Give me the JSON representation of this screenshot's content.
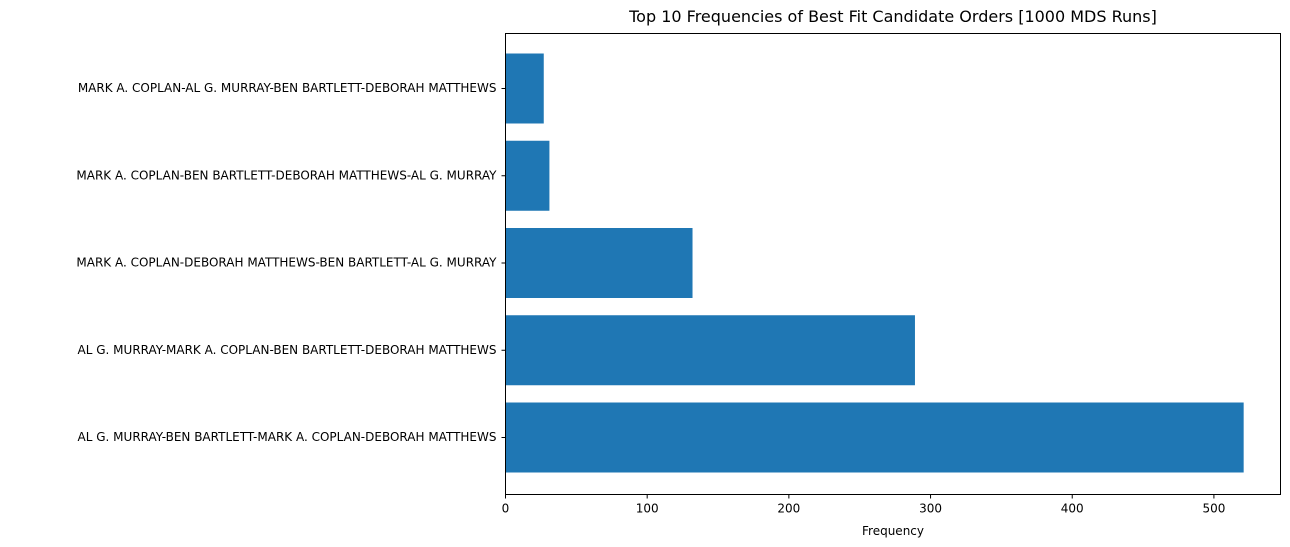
{
  "chart_data": {
    "type": "bar",
    "orientation": "horizontal",
    "title": "Top 10 Frequencies of Best Fit Candidate Orders [1000 MDS Runs]",
    "xlabel": "Frequency",
    "ylabel": "",
    "xlim": [
      0,
      547
    ],
    "xticks": [
      0,
      100,
      200,
      300,
      400,
      500
    ],
    "grid": false,
    "bar_color": "#1f77b4",
    "categories": [
      "AL G. MURRAY-BEN BARTLETT-MARK A. COPLAN-DEBORAH MATTHEWS",
      "AL G. MURRAY-MARK A. COPLAN-BEN BARTLETT-DEBORAH MATTHEWS",
      "MARK A. COPLAN-DEBORAH MATTHEWS-BEN BARTLETT-AL G. MURRAY",
      "MARK A. COPLAN-BEN BARTLETT-DEBORAH MATTHEWS-AL G. MURRAY",
      "MARK A. COPLAN-AL G. MURRAY-BEN BARTLETT-DEBORAH MATTHEWS"
    ],
    "values": [
      521,
      289,
      132,
      31,
      27
    ]
  }
}
